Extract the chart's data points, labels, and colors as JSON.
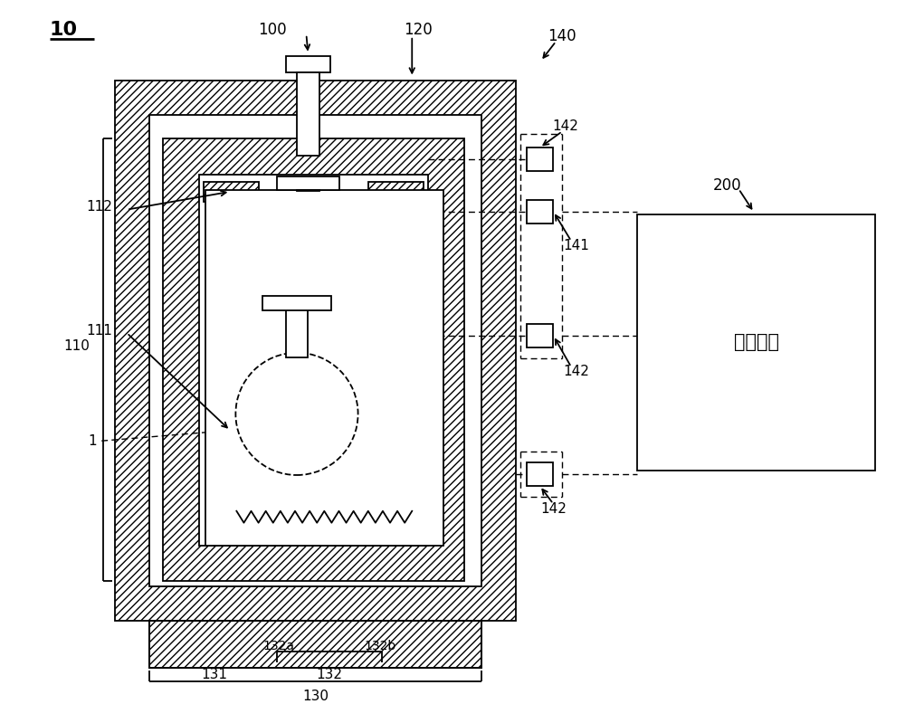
{
  "bg_color": "#ffffff",
  "label_10": "10",
  "label_100": "100",
  "label_110": "110",
  "label_111": "111",
  "label_112": "112",
  "label_120": "120",
  "label_130": "130",
  "label_131": "131",
  "label_132": "132",
  "label_132a": "132a",
  "label_132b": "132b",
  "label_140": "140",
  "label_141": "141",
  "label_142": "142",
  "label_1": "1",
  "label_200": "200",
  "label_control": "控制单元"
}
